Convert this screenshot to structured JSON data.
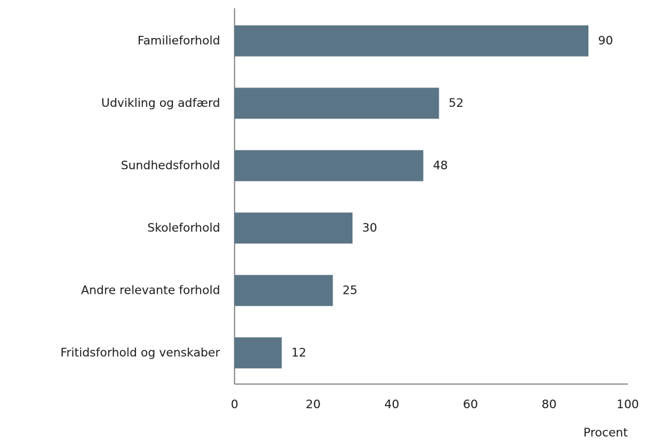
{
  "chart_data": {
    "type": "bar",
    "orientation": "horizontal",
    "categories": [
      "Familieforhold",
      "Udvikling og adfærd",
      "Sundhedsforhold",
      "Skoleforhold",
      "Andre relevante forhold",
      "Fritidsforhold og venskaber"
    ],
    "values": [
      90,
      52,
      48,
      30,
      25,
      12
    ],
    "color": "#5a7585",
    "xlabel": "Procent",
    "xlim": [
      0,
      100
    ],
    "xticks": [
      0,
      20,
      40,
      60,
      80,
      100
    ],
    "grid": false
  }
}
